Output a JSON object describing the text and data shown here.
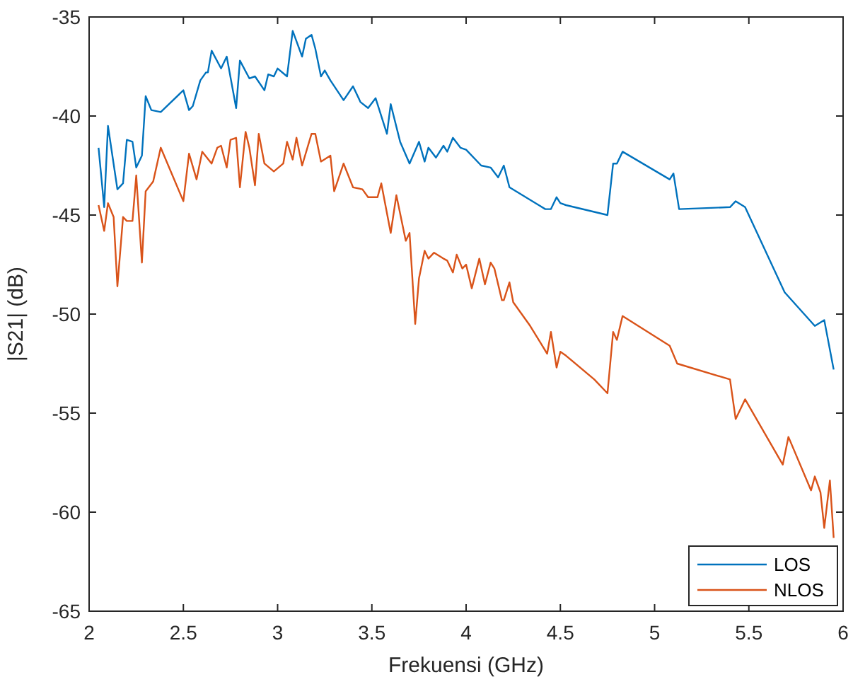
{
  "chart_data": {
    "type": "line",
    "xlabel": "Frekuensi (GHz)",
    "ylabel": "|S21| (dB)",
    "xlim": [
      2,
      6
    ],
    "ylim": [
      -65,
      -35
    ],
    "xticks": [
      2,
      2.5,
      3,
      3.5,
      4,
      4.5,
      5,
      5.5,
      6
    ],
    "yticks": [
      -65,
      -60,
      -55,
      -50,
      -45,
      -40,
      -35
    ],
    "grid": false,
    "legend": "bottom right",
    "line_style": "solid",
    "marker": "none",
    "series": [
      {
        "name": "LOS",
        "color": "#0072bd",
        "x": [
          2.05,
          2.08,
          2.1,
          2.15,
          2.18,
          2.2,
          2.23,
          2.25,
          2.28,
          2.3,
          2.33,
          2.38,
          2.5,
          2.53,
          2.55,
          2.59,
          2.62,
          2.63,
          2.65,
          2.7,
          2.73,
          2.78,
          2.8,
          2.85,
          2.88,
          2.93,
          2.95,
          2.98,
          3.0,
          3.05,
          3.08,
          3.13,
          3.15,
          3.18,
          3.2,
          3.23,
          3.25,
          3.28,
          3.35,
          3.4,
          3.44,
          3.48,
          3.52,
          3.58,
          3.6,
          3.65,
          3.7,
          3.75,
          3.78,
          3.8,
          3.84,
          3.88,
          3.9,
          3.93,
          3.97,
          4.0,
          4.08,
          4.13,
          4.17,
          4.2,
          4.23,
          4.42,
          4.45,
          4.48,
          4.5,
          4.53,
          4.75,
          4.78,
          4.8,
          4.83,
          5.08,
          5.1,
          5.13,
          5.4,
          5.43,
          5.48,
          5.69,
          5.85,
          5.9,
          5.95
        ],
        "values": [
          -41.6,
          -44.6,
          -40.5,
          -43.7,
          -43.4,
          -41.2,
          -41.3,
          -42.6,
          -42.0,
          -39.0,
          -39.7,
          -39.8,
          -38.7,
          -39.7,
          -39.5,
          -38.2,
          -37.8,
          -37.8,
          -36.7,
          -37.6,
          -37.0,
          -39.6,
          -37.2,
          -38.1,
          -38.0,
          -38.7,
          -37.9,
          -38.0,
          -37.6,
          -38.0,
          -35.7,
          -37.0,
          -36.1,
          -35.9,
          -36.6,
          -38.0,
          -37.7,
          -38.2,
          -39.2,
          -38.5,
          -39.3,
          -39.6,
          -39.1,
          -40.9,
          -39.4,
          -41.3,
          -42.4,
          -41.3,
          -42.3,
          -41.6,
          -42.1,
          -41.5,
          -41.8,
          -41.1,
          -41.6,
          -41.7,
          -42.5,
          -42.6,
          -43.1,
          -42.5,
          -43.6,
          -44.7,
          -44.7,
          -44.1,
          -44.4,
          -44.5,
          -45.0,
          -42.4,
          -42.4,
          -41.8,
          -43.2,
          -42.9,
          -44.7,
          -44.6,
          -44.3,
          -44.6,
          -48.9,
          -50.6,
          -50.3,
          -52.8
        ]
      },
      {
        "name": "NLOS",
        "color": "#d95319",
        "x": [
          2.05,
          2.08,
          2.1,
          2.13,
          2.15,
          2.18,
          2.2,
          2.23,
          2.25,
          2.28,
          2.3,
          2.34,
          2.38,
          2.5,
          2.53,
          2.57,
          2.6,
          2.65,
          2.68,
          2.7,
          2.73,
          2.75,
          2.78,
          2.8,
          2.83,
          2.85,
          2.88,
          2.9,
          2.93,
          2.98,
          3.03,
          3.05,
          3.08,
          3.1,
          3.13,
          3.18,
          3.2,
          3.23,
          3.28,
          3.3,
          3.35,
          3.4,
          3.45,
          3.48,
          3.53,
          3.55,
          3.6,
          3.63,
          3.68,
          3.7,
          3.73,
          3.75,
          3.78,
          3.8,
          3.83,
          3.88,
          3.9,
          3.93,
          3.95,
          3.98,
          4.0,
          4.03,
          4.07,
          4.1,
          4.13,
          4.15,
          4.19,
          4.2,
          4.23,
          4.25,
          4.34,
          4.43,
          4.45,
          4.48,
          4.5,
          4.53,
          4.68,
          4.75,
          4.78,
          4.8,
          4.83,
          5.08,
          5.12,
          5.4,
          5.43,
          5.48,
          5.68,
          5.71,
          5.83,
          5.85,
          5.88,
          5.9,
          5.93,
          5.95
        ],
        "values": [
          -44.5,
          -45.8,
          -44.4,
          -45.1,
          -48.6,
          -45.1,
          -45.3,
          -45.3,
          -43.0,
          -47.4,
          -43.8,
          -43.3,
          -41.6,
          -44.3,
          -41.9,
          -43.2,
          -41.8,
          -42.4,
          -41.6,
          -41.5,
          -42.6,
          -41.2,
          -41.1,
          -43.6,
          -40.8,
          -41.6,
          -43.5,
          -40.9,
          -42.4,
          -42.8,
          -42.4,
          -41.3,
          -42.2,
          -41.1,
          -42.5,
          -40.9,
          -40.9,
          -42.3,
          -42.0,
          -43.8,
          -42.4,
          -43.6,
          -43.7,
          -44.1,
          -44.1,
          -43.4,
          -45.9,
          -44.0,
          -46.3,
          -45.9,
          -50.5,
          -48.2,
          -46.8,
          -47.2,
          -46.9,
          -47.2,
          -47.3,
          -47.9,
          -47.0,
          -47.7,
          -47.5,
          -48.7,
          -47.2,
          -48.5,
          -47.4,
          -47.7,
          -49.3,
          -49.3,
          -48.4,
          -49.4,
          -50.6,
          -52.0,
          -50.9,
          -52.7,
          -51.9,
          -52.1,
          -53.3,
          -54.0,
          -50.9,
          -51.3,
          -50.1,
          -51.6,
          -52.5,
          -53.3,
          -55.3,
          -54.3,
          -57.6,
          -56.2,
          -58.9,
          -58.2,
          -59.0,
          -60.8,
          -58.4,
          -61.3
        ]
      }
    ]
  }
}
